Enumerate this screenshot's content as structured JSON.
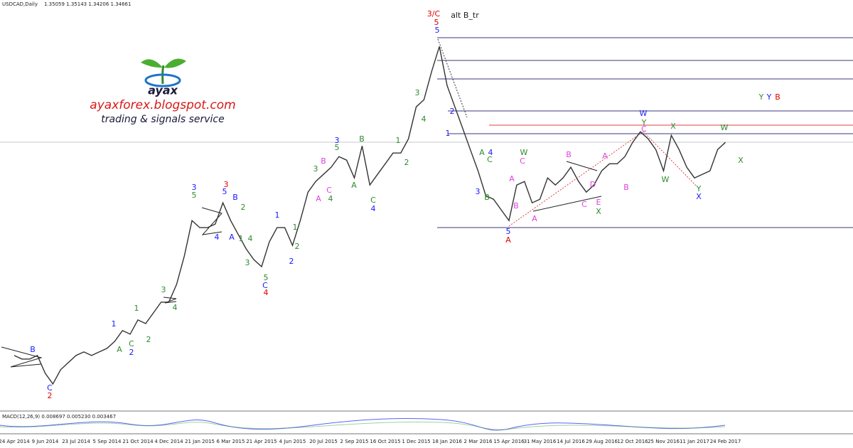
{
  "chart_data": {
    "type": "line",
    "title": "USDCAD,Daily",
    "subtitle": "1.35059 1.35143 1.34206 1.34661",
    "indicator_label": "MACD(12,26,9) 0.008697 0.005230 0.003467",
    "logo_name": "ayax",
    "logo_site": "ayaxforex.blogspot.com",
    "logo_tagline": "trading & signals service",
    "color": "#333333",
    "ylim": [
      1.023,
      1.523
    ],
    "categories": [
      "24 Apr 2014",
      null,
      null,
      null,
      "9 Jun 2014",
      null,
      null,
      null,
      "23 Jul 2014",
      null,
      null,
      null,
      "5 Sep 2014",
      null,
      null,
      null,
      "21 Oct 2014",
      null,
      null,
      null,
      "4 Dec 2014",
      null,
      null,
      null,
      "21 Jan 2015",
      null,
      null,
      null,
      "6 Mar 2015",
      null,
      null,
      null,
      "21 Apr 2015",
      null,
      null,
      null,
      "4 Jun 2015",
      null,
      null,
      null,
      "20 Jul 2015",
      null,
      null,
      null,
      "2 Sep 2015",
      null,
      null,
      null,
      "16 Oct 2015",
      null,
      null,
      null,
      "1 Dec 2015",
      null,
      null,
      null,
      "18 Jan 2016",
      null,
      null,
      null,
      "2 Mar 2016",
      null,
      null,
      null,
      "15 Apr 2016",
      null,
      null,
      null,
      "31 May 2016",
      null,
      null,
      null,
      "14 Jul 2016",
      null,
      null,
      null,
      "29 Aug 2016",
      null,
      null,
      null,
      "12 Oct 2016",
      null,
      null,
      null,
      "25 Nov 2016",
      null,
      null,
      null,
      "11 Jan 2017",
      null,
      null,
      null,
      "24 Feb 2017"
    ],
    "values": [
      1.0906,
      1.0862,
      1.0862,
      1.0906,
      1.069,
      1.056,
      1.0733,
      1.0819,
      1.0906,
      1.0949,
      1.0906,
      1.0949,
      1.0992,
      1.1078,
      1.1208,
      1.1165,
      1.1338,
      1.1294,
      1.1424,
      1.1554,
      1.1554,
      1.177,
      1.2115,
      1.2547,
      1.2461,
      1.2461,
      1.2504,
      1.2763,
      1.2547,
      1.2374,
      1.2202,
      1.2072,
      1.1986,
      1.2288,
      1.2461,
      1.2461,
      1.2245,
      1.2547,
      1.2893,
      1.3022,
      1.3109,
      1.3195,
      1.3325,
      1.3282,
      1.3066,
      1.3454,
      1.2979,
      1.3109,
      1.3238,
      1.3368,
      1.3368,
      1.3541,
      1.393,
      1.4016,
      1.4362,
      1.4664,
      1.4189,
      1.393,
      1.367,
      1.3411,
      1.3152,
      1.285,
      1.2806,
      1.2677,
      1.2547,
      1.2979,
      1.3022,
      1.2763,
      1.2806,
      1.3066,
      1.2979,
      1.3066,
      1.3195,
      1.3022,
      1.2893,
      1.2979,
      1.3152,
      1.3238,
      1.3238,
      1.3325,
      1.3498,
      1.3627,
      1.3541,
      1.3411,
      1.3152,
      1.3584,
      1.3411,
      1.3195,
      1.3066,
      1.3109,
      1.3152,
      1.3411,
      1.3498
    ],
    "annotations": [
      {
        "text": "3/C",
        "color": "#e00000"
      },
      {
        "text": "alt B_tr",
        "color": "#222222"
      },
      {
        "text": "5",
        "color": "#e00000"
      },
      {
        "text": "3",
        "color": "#e00000"
      },
      {
        "text": "4",
        "color": "#e00000"
      },
      {
        "text": "2",
        "color": "#e00000"
      },
      {
        "text": "A",
        "color": "#e00000"
      },
      {
        "text": "B",
        "color": "#e00000"
      },
      {
        "text": "5",
        "color": "#1a1aff"
      },
      {
        "text": "2",
        "color": "#1a1aff"
      },
      {
        "text": "1",
        "color": "#1a1aff"
      },
      {
        "text": "4",
        "color": "#1a1aff"
      },
      {
        "text": "3",
        "color": "#1a1aff"
      },
      {
        "text": "5",
        "color": "#1a1aff"
      },
      {
        "text": "W",
        "color": "#1a1aff"
      },
      {
        "text": "X",
        "color": "#1a1aff"
      },
      {
        "text": "Y",
        "color": "#1a1aff"
      },
      {
        "text": "3",
        "color": "#1a1aff"
      },
      {
        "text": "5",
        "color": "#1a1aff"
      },
      {
        "text": "B",
        "color": "#1a1aff"
      },
      {
        "text": "4",
        "color": "#1a1aff"
      },
      {
        "text": "A",
        "color": "#1a1aff"
      },
      {
        "text": "1",
        "color": "#1a1aff"
      },
      {
        "text": "2",
        "color": "#1a1aff"
      },
      {
        "text": "C",
        "color": "#1a1aff"
      },
      {
        "text": "3",
        "color": "#1a1aff"
      },
      {
        "text": "4",
        "color": "#1a1aff"
      },
      {
        "text": "1",
        "color": "#1a1aff"
      },
      {
        "text": "2",
        "color": "#1a1aff"
      },
      {
        "text": "B",
        "color": "#1a1aff"
      },
      {
        "text": "C",
        "color": "#1a1aff"
      },
      {
        "text": "5",
        "color": "#2e8b2e"
      },
      {
        "text": "2",
        "color": "#2e8b2e"
      },
      {
        "text": "1",
        "color": "#2e8b2e"
      },
      {
        "text": "4",
        "color": "#2e8b2e"
      },
      {
        "text": "3",
        "color": "#2e8b2e"
      },
      {
        "text": "5",
        "color": "#2e8b2e"
      },
      {
        "text": "2",
        "color": "#2e8b2e"
      },
      {
        "text": "1",
        "color": "#2e8b2e"
      },
      {
        "text": "3",
        "color": "#2e8b2e"
      },
      {
        "text": "4",
        "color": "#2e8b2e"
      },
      {
        "text": "5",
        "color": "#2e8b2e"
      },
      {
        "text": "B",
        "color": "#2e8b2e"
      },
      {
        "text": "A",
        "color": "#2e8b2e"
      },
      {
        "text": "C",
        "color": "#2e8b2e"
      },
      {
        "text": "1",
        "color": "#2e8b2e"
      },
      {
        "text": "2",
        "color": "#2e8b2e"
      },
      {
        "text": "3",
        "color": "#2e8b2e"
      },
      {
        "text": "4",
        "color": "#2e8b2e"
      },
      {
        "text": "B",
        "color": "#2e8b2e"
      },
      {
        "text": "A",
        "color": "#2e8b2e"
      },
      {
        "text": "C",
        "color": "#2e8b2e"
      },
      {
        "text": "W",
        "color": "#2e8b2e"
      },
      {
        "text": "X",
        "color": "#2e8b2e"
      },
      {
        "text": "W",
        "color": "#2e8b2e"
      },
      {
        "text": "X",
        "color": "#2e8b2e"
      },
      {
        "text": "Y",
        "color": "#2e8b2e"
      },
      {
        "text": "W",
        "color": "#2e8b2e"
      },
      {
        "text": "X",
        "color": "#2e8b2e"
      },
      {
        "text": "Y",
        "color": "#2e8b2e"
      },
      {
        "text": "Y",
        "color": "#2e8b2e"
      },
      {
        "text": "A",
        "color": "#2e8b2e"
      },
      {
        "text": "C",
        "color": "#2e8b2e"
      },
      {
        "text": "1",
        "color": "#2e8b2e"
      },
      {
        "text": "2",
        "color": "#2e8b2e"
      },
      {
        "text": "3",
        "color": "#2e8b2e"
      },
      {
        "text": "4",
        "color": "#2e8b2e"
      },
      {
        "text": "A",
        "color": "#e040e0"
      },
      {
        "text": "C",
        "color": "#e040e0"
      },
      {
        "text": "B",
        "color": "#e040e0"
      },
      {
        "text": "A",
        "color": "#e040e0"
      },
      {
        "text": "B",
        "color": "#e040e0"
      },
      {
        "text": "C",
        "color": "#e040e0"
      },
      {
        "text": "D",
        "color": "#e040e0"
      },
      {
        "text": "E",
        "color": "#e040e0"
      },
      {
        "text": "A",
        "color": "#e040e0"
      },
      {
        "text": "B",
        "color": "#e040e0"
      },
      {
        "text": "C",
        "color": "#e040e0"
      },
      {
        "text": "A",
        "color": "#e040e0"
      },
      {
        "text": "B",
        "color": "#e040e0"
      },
      {
        "text": "C",
        "color": "#e040e0"
      }
    ]
  }
}
